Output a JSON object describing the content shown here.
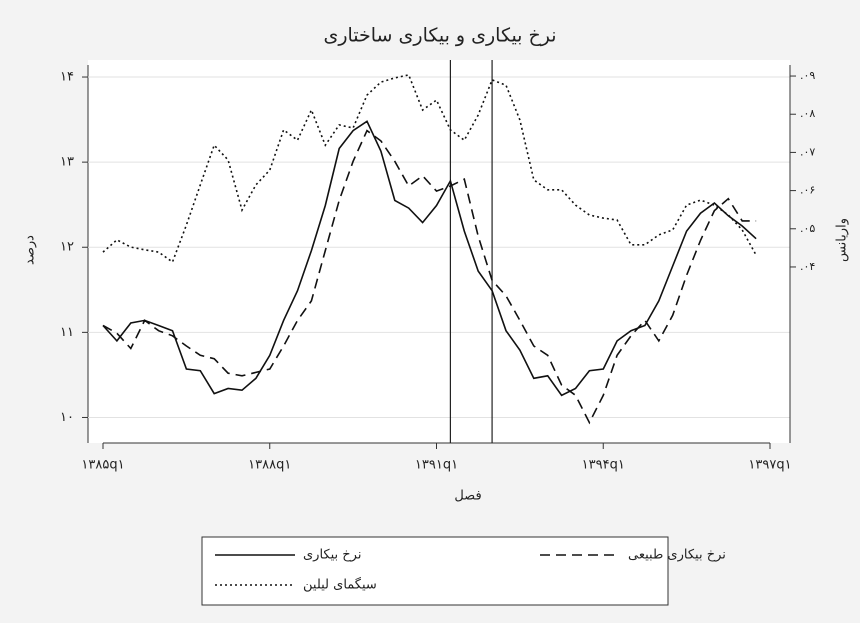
{
  "chart_data": {
    "type": "line",
    "title": "نرخ بیکاری و بیکاری ساختاری",
    "ylabel": "درصد",
    "y2label": "واریانس",
    "xlabel": "فصل",
    "categories": [
      "۱۳۸۵q۱",
      null,
      null,
      null,
      null,
      null,
      null,
      null,
      null,
      null,
      null,
      null,
      "۱۳۸۸q۱",
      null,
      null,
      null,
      null,
      null,
      null,
      null,
      null,
      null,
      null,
      null,
      "۱۳۹۱q۱",
      null,
      null,
      null,
      null,
      null,
      null,
      null,
      null,
      null,
      null,
      null,
      "۱۳۹۴q۱",
      null,
      null,
      null,
      null,
      null,
      null,
      null,
      null,
      null,
      null,
      null,
      "۱۳۹۷q۱"
    ],
    "series": [
      {
        "name": "نرخ بیکاری",
        "color": "#111111",
        "dash": "solid",
        "axis": "y",
        "values": [
          11.08,
          10.9,
          11.11,
          11.14,
          11.08,
          11.02,
          10.57,
          10.55,
          10.28,
          10.34,
          10.32,
          10.46,
          10.73,
          11.14,
          11.49,
          11.96,
          12.49,
          13.16,
          13.37,
          13.48,
          13.13,
          12.55,
          12.46,
          12.29,
          12.49,
          12.78,
          12.19,
          11.72,
          11.49,
          11.02,
          10.79,
          10.46,
          10.49,
          10.26,
          10.34,
          10.55,
          10.57,
          10.9,
          11.02,
          11.08,
          11.37,
          11.78,
          12.19,
          12.4,
          12.52,
          12.37,
          12.25,
          12.1,
          null
        ]
      },
      {
        "name": "نرخ بیکاری طبیعی",
        "color": "#111111",
        "dash": "dashed",
        "axis": "y",
        "values": [
          11.08,
          10.99,
          10.81,
          11.14,
          11.02,
          10.96,
          10.84,
          10.73,
          10.69,
          10.52,
          10.49,
          10.53,
          10.57,
          10.84,
          11.14,
          11.37,
          11.96,
          12.55,
          13.01,
          13.37,
          13.25,
          13.01,
          12.72,
          12.84,
          12.66,
          12.72,
          12.8,
          12.13,
          11.61,
          11.43,
          11.14,
          10.84,
          10.73,
          10.38,
          10.26,
          9.94,
          10.26,
          10.73,
          10.96,
          11.14,
          10.9,
          11.2,
          11.67,
          12.08,
          12.43,
          12.57,
          12.31,
          12.31,
          null
        ]
      },
      {
        "name": "سیگمای لیلین",
        "color": "#111111",
        "dash": "dotted",
        "axis": "y2",
        "values": [
          0.0439,
          0.0471,
          0.0452,
          0.0445,
          0.0439,
          0.0413,
          0.051,
          0.0615,
          0.0719,
          0.068,
          0.0549,
          0.0615,
          0.0654,
          0.0759,
          0.0732,
          0.0811,
          0.0719,
          0.0772,
          0.0764,
          0.085,
          0.0884,
          0.0895,
          0.0903,
          0.0811,
          0.0837,
          0.0759,
          0.0732,
          0.0798,
          0.089,
          0.0876,
          0.0785,
          0.0628,
          0.0602,
          0.0602,
          0.0562,
          0.0536,
          0.0528,
          0.0523,
          0.0458,
          0.0458,
          0.0484,
          0.0497,
          0.0562,
          0.0575,
          0.0562,
          0.0536,
          0.0497,
          0.0431,
          null
        ]
      }
    ],
    "vlines": [
      25,
      28
    ],
    "ylim": [
      9.7,
      14.2
    ],
    "yticks": [
      {
        "value": 10,
        "label": "۱۰"
      },
      {
        "value": 11,
        "label": "۱۱"
      },
      {
        "value": 12,
        "label": "۱۲"
      },
      {
        "value": 13,
        "label": "۱۳"
      },
      {
        "value": 14,
        "label": "۱۴"
      }
    ],
    "y2lim": [
      -0.0061,
      0.0942
    ],
    "y2ticks": [
      {
        "value": 0.04,
        "label": ".۰۴"
      },
      {
        "value": 0.05,
        "label": ".۰۵"
      },
      {
        "value": 0.06,
        "label": ".۰۶"
      },
      {
        "value": 0.07,
        "label": ".۰۷"
      },
      {
        "value": 0.08,
        "label": ".۰۸"
      },
      {
        "value": 0.09,
        "label": ".۰۹"
      }
    ],
    "grid": true,
    "legend": "bottom"
  }
}
